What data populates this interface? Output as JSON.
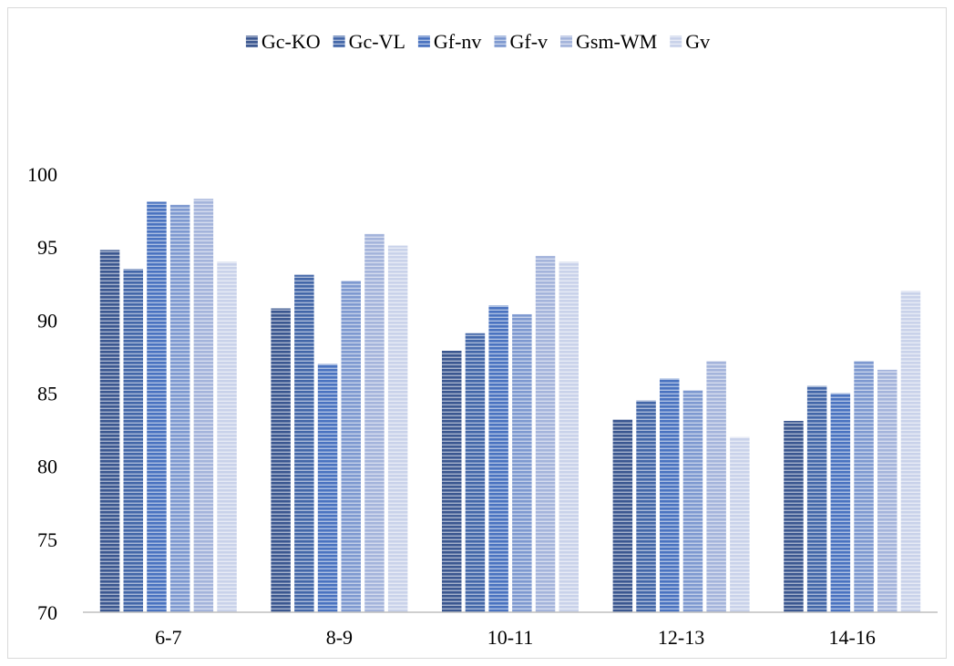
{
  "chart_data": {
    "type": "bar",
    "title": "",
    "xlabel": "",
    "ylabel": "",
    "categories": [
      "6-7",
      "8-9",
      "10-11",
      "12-13",
      "14-16"
    ],
    "ylim": [
      70,
      100
    ],
    "yticks": [
      70,
      75,
      80,
      85,
      90,
      95,
      100
    ],
    "grid": false,
    "legend_position": "top",
    "series": [
      {
        "name": "Gc-KO",
        "color": "#3b5790",
        "values": [
          94.8,
          90.8,
          87.9,
          83.2,
          83.1
        ]
      },
      {
        "name": "Gc-VL",
        "color": "#4367a8",
        "values": [
          93.5,
          93.1,
          89.1,
          84.5,
          85.5
        ]
      },
      {
        "name": "Gf-nv",
        "color": "#4a73c0",
        "values": [
          98.1,
          87.0,
          91.0,
          86.0,
          85.0
        ]
      },
      {
        "name": "Gf-v",
        "color": "#7e99d0",
        "values": [
          97.9,
          92.7,
          90.4,
          85.2,
          87.2
        ]
      },
      {
        "name": "Gsm-WM",
        "color": "#a4b4db",
        "values": [
          98.3,
          95.9,
          94.4,
          87.2,
          86.6
        ]
      },
      {
        "name": "Gv",
        "color": "#c9d2ea",
        "values": [
          94.0,
          95.1,
          94.0,
          82.0,
          92.0
        ]
      }
    ]
  }
}
